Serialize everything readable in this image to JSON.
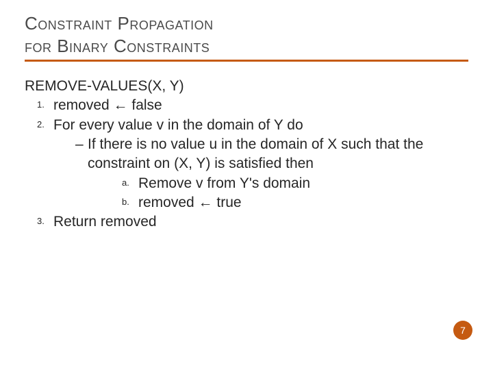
{
  "title": {
    "line1": "Constraint Propagation",
    "line2": "for Binary Constraints"
  },
  "func": {
    "name": "REMOVE-VALUES(",
    "arg1": "X",
    "sep": ", ",
    "arg2": "Y",
    "close": ")"
  },
  "steps": {
    "s1": {
      "num": "1.",
      "a": "removed ",
      "arrow": "←",
      "b": " false"
    },
    "s2": {
      "num": "2.",
      "a": "For every value ",
      "v": "v",
      "b": " in the domain of ",
      "Y": "Y",
      "c": " do",
      "dash": {
        "a": "If there is no value ",
        "u": "u",
        "b": " in the domain of ",
        "X": "X",
        "c": " such that the constraint on (",
        "X2": "X",
        "sep": ", ",
        "Y2": "Y",
        "d": ") is satisfied then"
      },
      "sub_a": {
        "num": "a.",
        "a": "Remove ",
        "v": "v",
        "b": " from ",
        "Y": "Y",
        "c": "'s domain"
      },
      "sub_b": {
        "num": "b.",
        "a": "removed ",
        "arrow": "←",
        "b": " true"
      }
    },
    "s3": {
      "num": "3.",
      "a": "Return ",
      "b": "removed"
    }
  },
  "page_number": "7",
  "colors": {
    "accent": "#c55a11",
    "text": "#262626",
    "title": "#4a4a4a"
  }
}
